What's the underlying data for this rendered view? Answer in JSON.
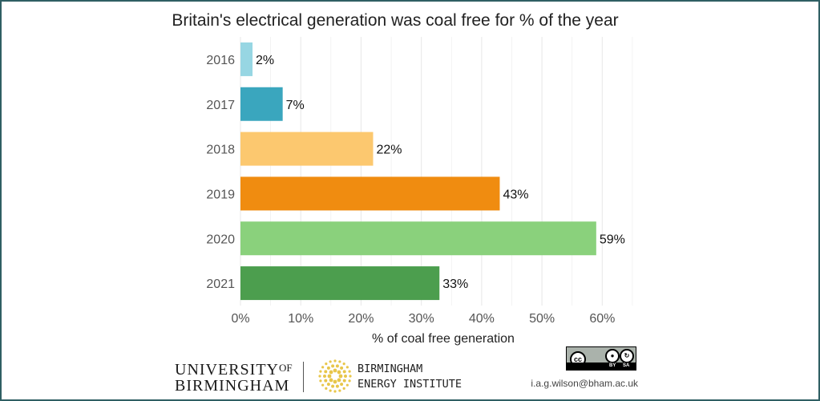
{
  "chart_data": {
    "type": "bar",
    "orientation": "horizontal",
    "title": "Britain's electrical generation was coal free for % of the year",
    "categories": [
      "2016",
      "2017",
      "2018",
      "2019",
      "2020",
      "2021"
    ],
    "values": [
      2,
      7,
      22,
      43,
      59,
      33
    ],
    "value_labels": [
      "2%",
      "7%",
      "22%",
      "43%",
      "59%",
      "33%"
    ],
    "colors": [
      "#97d6e3",
      "#3aa6be",
      "#fcc86f",
      "#f08c10",
      "#8ad17c",
      "#4c9e4e"
    ],
    "xlabel": "% of coal free generation",
    "ylabel": "",
    "xlim": [
      0,
      67
    ],
    "xticks": [
      0,
      10,
      20,
      30,
      40,
      50,
      60
    ],
    "xtick_labels": [
      "0%",
      "10%",
      "20%",
      "30%",
      "40%",
      "50%",
      "60%"
    ],
    "grid": true,
    "legend": "none"
  },
  "footer": {
    "university_line1": "UNIVERSITY",
    "university_of": "OF",
    "university_line2": "BIRMINGHAM",
    "institute_line1": "BIRMINGHAM",
    "institute_line2": "ENERGY INSTITUTE",
    "license_by": "BY",
    "license_sa": "SA",
    "email": "i.a.g.wilson@bham.ac.uk"
  },
  "colors": {
    "frame": "#2f5f63",
    "grid": "#ebebeb",
    "logo_gold": "#e8c64a"
  }
}
